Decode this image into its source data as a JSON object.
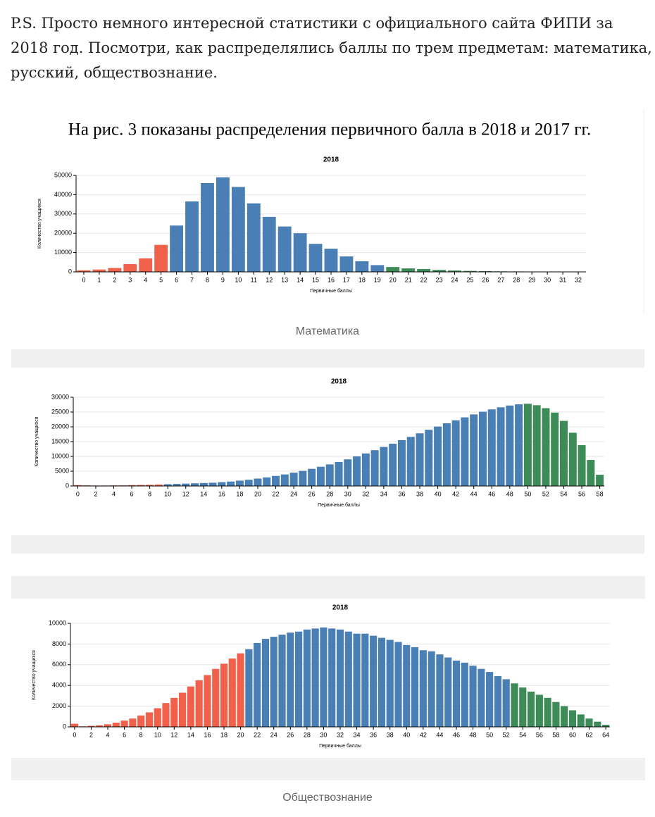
{
  "intro": [
    "P.S. Просто немного интересной статистики с официального сайта ФИПИ за",
    "2018 год. Посмотри, как распределялись баллы по трем предметам: математика,",
    "русский, обществознание."
  ],
  "figure_title": "На рис. 3 показаны распределения первичного балла в 2018 и 2017 гг.",
  "chart_data": [
    {
      "type": "bar",
      "title": "2018",
      "x_label": "Первичные баллы",
      "y_label": "Количество учащихся",
      "caption": "Математика",
      "categories": [
        "0",
        "1",
        "2",
        "3",
        "4",
        "5",
        "6",
        "7",
        "8",
        "9",
        "10",
        "11",
        "12",
        "13",
        "14",
        "15",
        "16",
        "17",
        "18",
        "19",
        "20",
        "21",
        "22",
        "23",
        "24",
        "25",
        "26",
        "27",
        "28",
        "29",
        "30",
        "31",
        "32"
      ],
      "values": [
        800,
        1200,
        2000,
        4000,
        7000,
        14000,
        24000,
        36500,
        46000,
        49000,
        44000,
        35500,
        28500,
        23500,
        20000,
        14500,
        12000,
        8000,
        5500,
        3500,
        2500,
        1800,
        1500,
        1000,
        700,
        500,
        350,
        250,
        200,
        150,
        100,
        80,
        50
      ],
      "colors": [
        "#f0604a",
        "#f0604a",
        "#f0604a",
        "#f0604a",
        "#f0604a",
        "#f0604a",
        "#4a7fb5",
        "#4a7fb5",
        "#4a7fb5",
        "#4a7fb5",
        "#4a7fb5",
        "#4a7fb5",
        "#4a7fb5",
        "#4a7fb5",
        "#4a7fb5",
        "#4a7fb5",
        "#4a7fb5",
        "#4a7fb5",
        "#4a7fb5",
        "#4a7fb5",
        "#3d8b57",
        "#3d8b57",
        "#3d8b57",
        "#3d8b57",
        "#3d8b57",
        "#3d8b57",
        "#3d8b57",
        "#3d8b57",
        "#3d8b57",
        "#3d8b57",
        "#3d8b57",
        "#3d8b57",
        "#3d8b57"
      ],
      "ylim": [
        0,
        50000
      ],
      "yticks": [
        0,
        10000,
        20000,
        30000,
        40000,
        50000
      ],
      "grid": true
    },
    {
      "type": "bar",
      "title": "2018",
      "x_label": "Первичные баллы",
      "y_label": "Количество учащихся",
      "categories": [
        "0",
        null,
        "2",
        null,
        "4",
        null,
        "6",
        null,
        "8",
        null,
        "10",
        null,
        "12",
        null,
        "14",
        null,
        "16",
        null,
        "18",
        null,
        "20",
        null,
        "22",
        null,
        "24",
        null,
        "26",
        null,
        "28",
        null,
        "30",
        null,
        "32",
        null,
        "34",
        null,
        "36",
        null,
        "38",
        null,
        "40",
        null,
        "42",
        null,
        "44",
        null,
        "46",
        null,
        "48",
        null,
        "50",
        null,
        "52",
        null,
        "54",
        null,
        "56",
        null,
        "58"
      ],
      "values": [
        300,
        200,
        150,
        150,
        200,
        200,
        300,
        350,
        400,
        500,
        600,
        700,
        800,
        900,
        1000,
        1100,
        1300,
        1500,
        1800,
        2100,
        2500,
        2900,
        3400,
        3900,
        4500,
        5100,
        5800,
        6500,
        7300,
        8100,
        9000,
        10000,
        11000,
        12100,
        13200,
        14300,
        15500,
        16600,
        17800,
        19000,
        20100,
        21200,
        22200,
        23200,
        24200,
        25100,
        25900,
        26600,
        27200,
        27600,
        27800,
        27300,
        26300,
        24800,
        22000,
        18000,
        13800,
        8800,
        3800
      ],
      "colors": [
        "#f0604a",
        "#f0604a",
        "#f0604a",
        "#f0604a",
        "#f0604a",
        "#f0604a",
        "#f0604a",
        "#f0604a",
        "#f0604a",
        "#f0604a",
        "#4a7fb5",
        "#4a7fb5",
        "#4a7fb5",
        "#4a7fb5",
        "#4a7fb5",
        "#4a7fb5",
        "#4a7fb5",
        "#4a7fb5",
        "#4a7fb5",
        "#4a7fb5",
        "#4a7fb5",
        "#4a7fb5",
        "#4a7fb5",
        "#4a7fb5",
        "#4a7fb5",
        "#4a7fb5",
        "#4a7fb5",
        "#4a7fb5",
        "#4a7fb5",
        "#4a7fb5",
        "#4a7fb5",
        "#4a7fb5",
        "#4a7fb5",
        "#4a7fb5",
        "#4a7fb5",
        "#4a7fb5",
        "#4a7fb5",
        "#4a7fb5",
        "#4a7fb5",
        "#4a7fb5",
        "#4a7fb5",
        "#4a7fb5",
        "#4a7fb5",
        "#4a7fb5",
        "#4a7fb5",
        "#4a7fb5",
        "#4a7fb5",
        "#4a7fb5",
        "#4a7fb5",
        "#4a7fb5",
        "#3d8b57",
        "#3d8b57",
        "#3d8b57",
        "#3d8b57",
        "#3d8b57",
        "#3d8b57",
        "#3d8b57",
        "#3d8b57",
        "#3d8b57"
      ],
      "ylim": [
        0,
        30000
      ],
      "yticks": [
        0,
        5000,
        10000,
        15000,
        20000,
        25000,
        30000
      ],
      "grid": true
    },
    {
      "type": "bar",
      "title": "2018",
      "x_label": "Первичные баллы",
      "y_label": "Количество учащихся",
      "caption": "Обществознание",
      "categories": [
        "0",
        null,
        "2",
        null,
        "4",
        null,
        "6",
        null,
        "8",
        null,
        "10",
        null,
        "12",
        null,
        "14",
        null,
        "16",
        null,
        "18",
        null,
        "20",
        null,
        "22",
        null,
        "24",
        null,
        "26",
        null,
        "28",
        null,
        "30",
        null,
        "32",
        null,
        "34",
        null,
        "36",
        null,
        "38",
        null,
        "40",
        null,
        "42",
        null,
        "44",
        null,
        "46",
        null,
        "48",
        null,
        "50",
        null,
        "52",
        null,
        "54",
        null,
        "56",
        null,
        "58",
        null,
        "60",
        null,
        "62",
        null,
        "64"
      ],
      "values": [
        300,
        50,
        100,
        150,
        250,
        400,
        600,
        800,
        1100,
        1400,
        1800,
        2300,
        2800,
        3300,
        3900,
        4500,
        5000,
        5600,
        6100,
        6600,
        7100,
        7500,
        8100,
        8500,
        8700,
        8900,
        9100,
        9200,
        9400,
        9500,
        9600,
        9500,
        9400,
        9200,
        9000,
        9000,
        8800,
        8600,
        8400,
        8200,
        7900,
        7700,
        7400,
        7300,
        7000,
        6700,
        6400,
        6200,
        5900,
        5600,
        5300,
        4900,
        4600,
        4200,
        3800,
        3400,
        3100,
        2800,
        2400,
        2000,
        1600,
        1200,
        800,
        500,
        200
      ],
      "colors": [
        "#f0604a",
        "#f0604a",
        "#f0604a",
        "#f0604a",
        "#f0604a",
        "#f0604a",
        "#f0604a",
        "#f0604a",
        "#f0604a",
        "#f0604a",
        "#f0604a",
        "#f0604a",
        "#f0604a",
        "#f0604a",
        "#f0604a",
        "#f0604a",
        "#f0604a",
        "#f0604a",
        "#f0604a",
        "#f0604a",
        "#f0604a",
        "#4a7fb5",
        "#4a7fb5",
        "#4a7fb5",
        "#4a7fb5",
        "#4a7fb5",
        "#4a7fb5",
        "#4a7fb5",
        "#4a7fb5",
        "#4a7fb5",
        "#4a7fb5",
        "#4a7fb5",
        "#4a7fb5",
        "#4a7fb5",
        "#4a7fb5",
        "#4a7fb5",
        "#4a7fb5",
        "#4a7fb5",
        "#4a7fb5",
        "#4a7fb5",
        "#4a7fb5",
        "#4a7fb5",
        "#4a7fb5",
        "#4a7fb5",
        "#4a7fb5",
        "#4a7fb5",
        "#4a7fb5",
        "#4a7fb5",
        "#4a7fb5",
        "#4a7fb5",
        "#4a7fb5",
        "#4a7fb5",
        "#4a7fb5",
        "#3d8b57",
        "#3d8b57",
        "#3d8b57",
        "#3d8b57",
        "#3d8b57",
        "#3d8b57",
        "#3d8b57",
        "#3d8b57",
        "#3d8b57",
        "#3d8b57",
        "#3d8b57",
        "#3d8b57"
      ],
      "ylim": [
        0,
        10000
      ],
      "yticks": [
        0,
        2000,
        4000,
        6000,
        8000,
        10000
      ],
      "grid": true
    }
  ]
}
